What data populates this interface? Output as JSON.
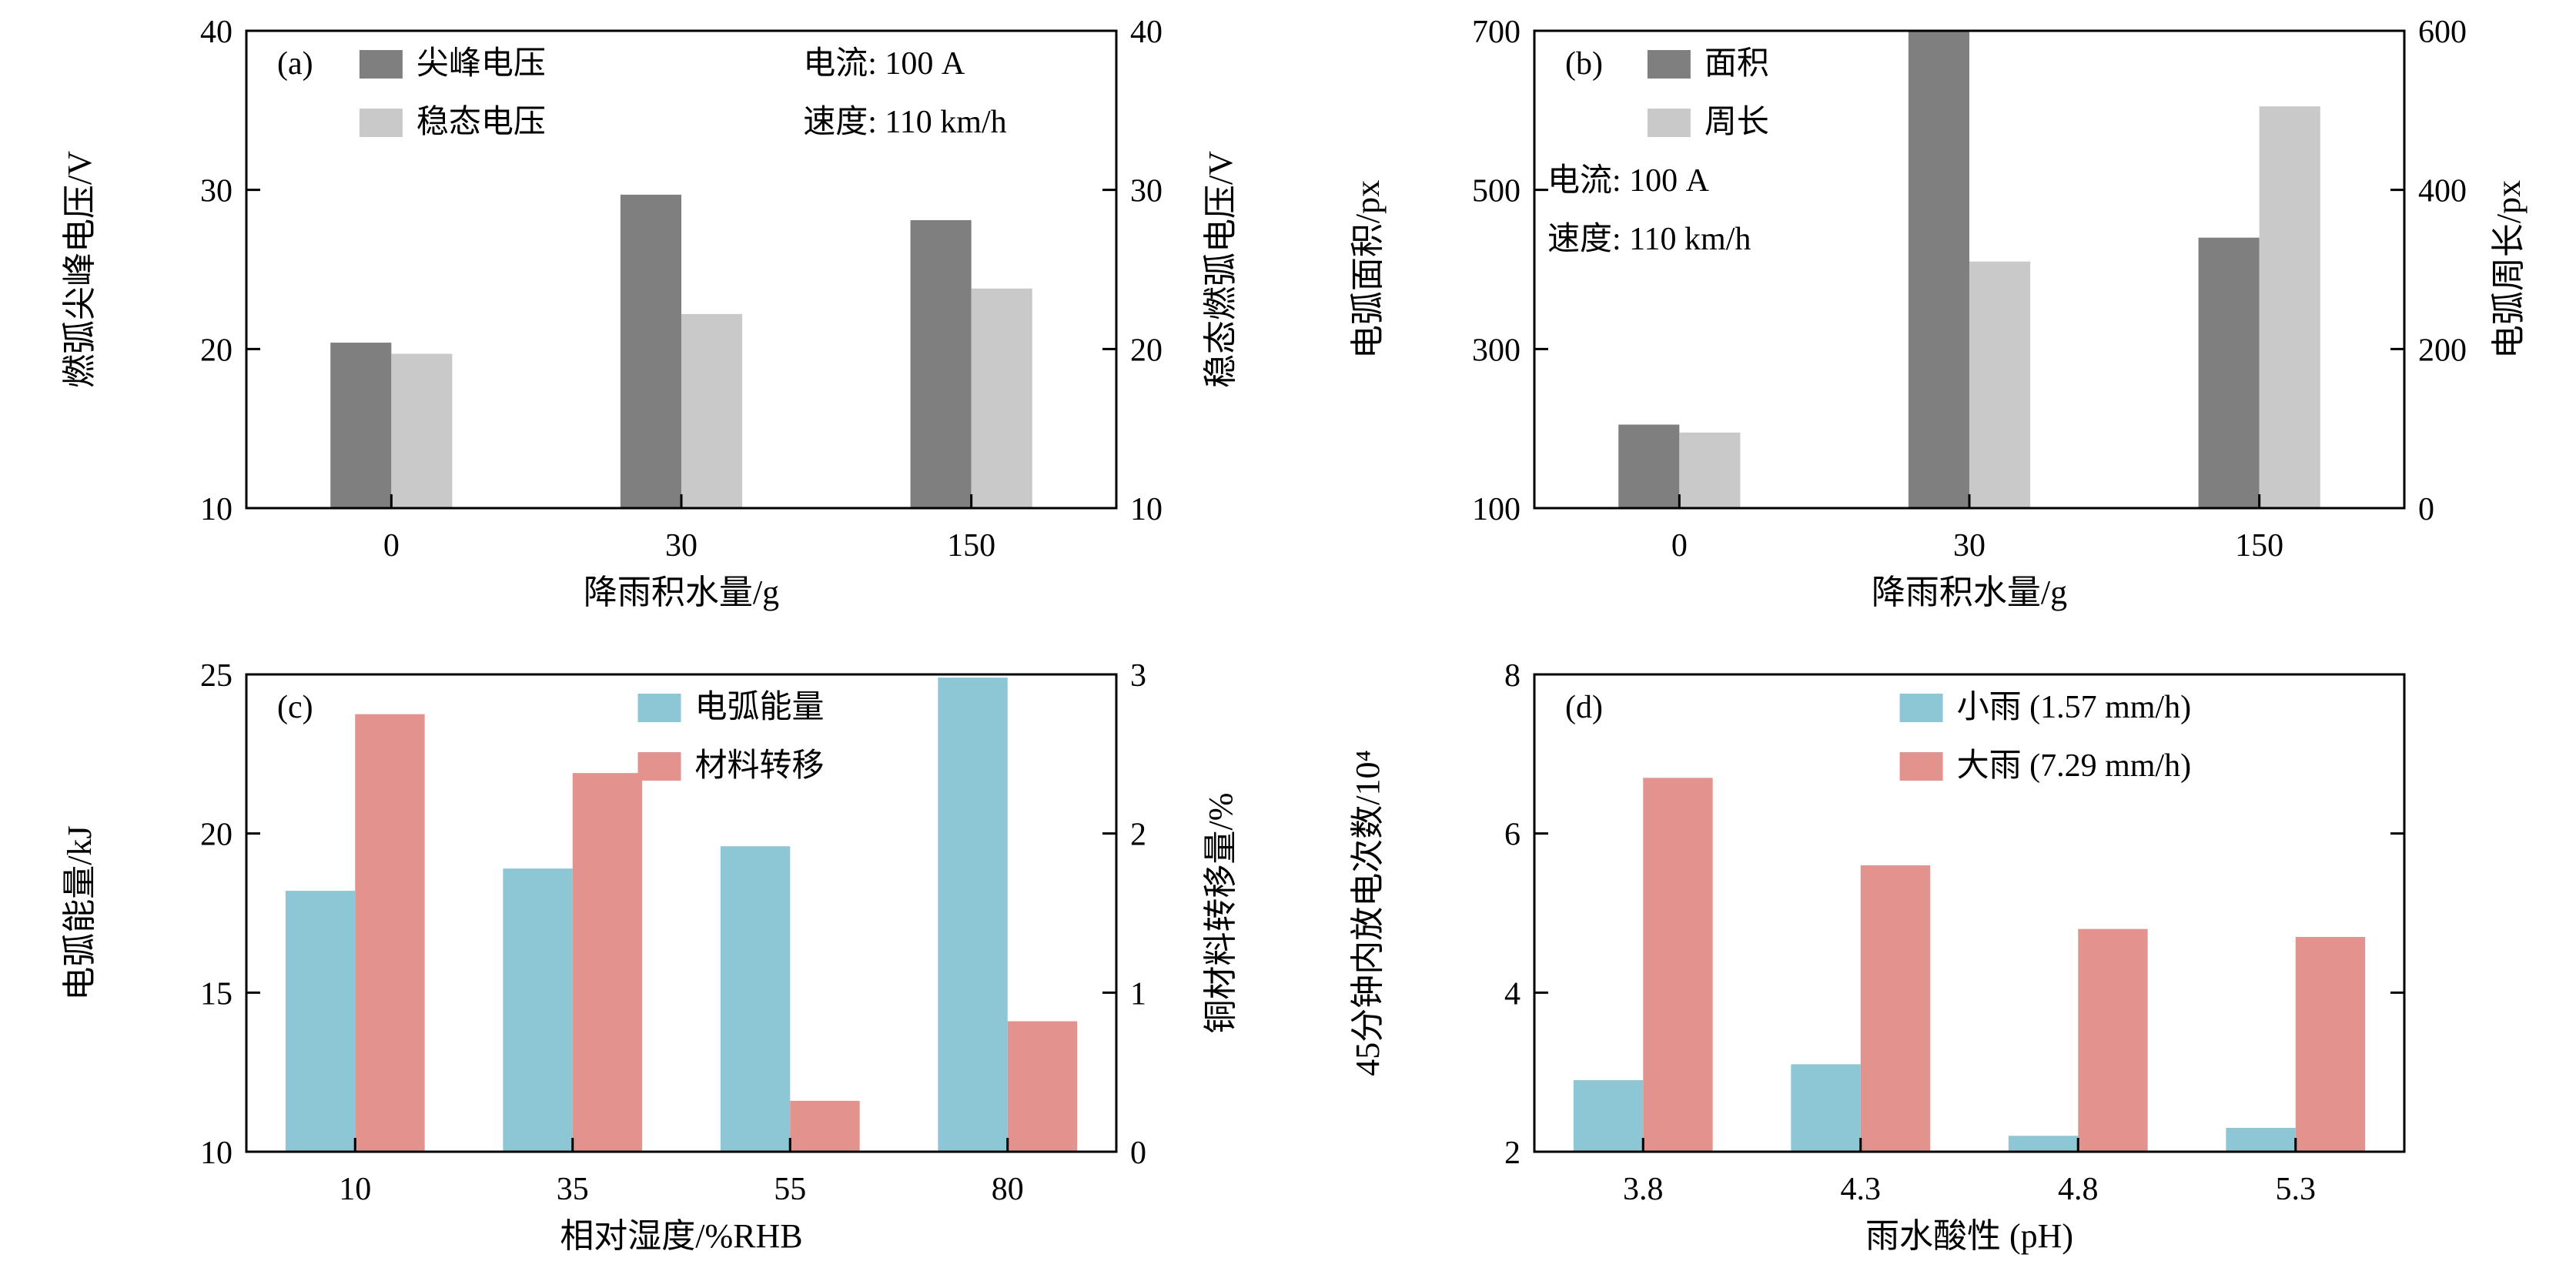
{
  "figure": {
    "background": "#ffffff",
    "axis_color": "#000000"
  },
  "chart_data": [
    {
      "type": "bar",
      "panel_label": "(a)",
      "categories": [
        "0",
        "30",
        "150"
      ],
      "series": [
        {
          "name": "尖峰电压",
          "color": "#7f7f7f",
          "axis": "left",
          "values": [
            20.4,
            29.7,
            28.1
          ]
        },
        {
          "name": "稳态电压",
          "color": "#c9c9c9",
          "axis": "left",
          "values": [
            19.7,
            22.2,
            23.8
          ]
        }
      ],
      "xlabel": "降雨积水量/g",
      "left_axis": {
        "label": "燃弧尖峰电压/V",
        "min": 10,
        "max": 40,
        "ticks": [
          10,
          20,
          30,
          40
        ]
      },
      "right_axis": {
        "label": "稳态燃弧电压/V",
        "min": 10,
        "max": 40,
        "ticks": [
          10,
          20,
          30,
          40
        ],
        "show_labels": true
      },
      "legend": {
        "x_frac": 0.13,
        "row": 0
      },
      "annotation": {
        "lines": [
          "电流: 100 A",
          "速度: 110 km/h"
        ],
        "x_frac": 0.64,
        "row": 0
      },
      "bar_frac": 0.21,
      "grid": false,
      "legend_position": "top-left-inside"
    },
    {
      "type": "bar",
      "panel_label": "(b)",
      "categories": [
        "0",
        "30",
        "150"
      ],
      "series": [
        {
          "name": "面积",
          "color": "#7f7f7f",
          "axis": "left",
          "values": [
            205,
            700,
            440
          ]
        },
        {
          "name": "周长",
          "color": "#c9c9c9",
          "axis": "right",
          "values": [
            95,
            310,
            505
          ]
        }
      ],
      "xlabel": "降雨积水量/g",
      "left_axis": {
        "label": "电弧面积/px",
        "min": 100,
        "max": 700,
        "ticks": [
          100,
          300,
          500,
          700
        ]
      },
      "right_axis": {
        "label": "电弧周长/px",
        "min": 0,
        "max": 600,
        "ticks": [
          0,
          200,
          400,
          600
        ],
        "show_labels": true
      },
      "legend": {
        "x_frac": 0.13,
        "row": 0
      },
      "annotation": {
        "lines": [
          "电流: 100 A",
          "速度: 110 km/h"
        ],
        "x_frac": 0.015,
        "row": 2
      },
      "bar_frac": 0.21,
      "grid": false,
      "legend_position": "top-left-inside"
    },
    {
      "type": "bar",
      "panel_label": "(c)",
      "categories": [
        "10",
        "35",
        "55",
        "80"
      ],
      "series": [
        {
          "name": "电弧能量",
          "color": "#8dc6d4",
          "axis": "left",
          "values": [
            18.2,
            18.9,
            19.6,
            24.9
          ]
        },
        {
          "name": "材料转移",
          "color": "#e3938d",
          "axis": "right",
          "values": [
            2.75,
            2.38,
            0.32,
            0.82
          ]
        }
      ],
      "xlabel": "相对湿度/%RHB",
      "left_axis": {
        "label": "电弧能量/kJ",
        "min": 10,
        "max": 25,
        "ticks": [
          10,
          15,
          20,
          25
        ]
      },
      "right_axis": {
        "label": "铜材料转移量/%",
        "min": 0,
        "max": 3,
        "ticks": [
          0,
          1,
          2,
          3
        ],
        "show_labels": true
      },
      "legend": {
        "x_frac": 0.45,
        "row": 0
      },
      "annotation": null,
      "bar_frac": 0.32,
      "grid": false,
      "legend_position": "top-center-inside"
    },
    {
      "type": "bar",
      "panel_label": "(d)",
      "categories": [
        "3.8",
        "4.3",
        "4.8",
        "5.3"
      ],
      "series": [
        {
          "name": "小雨 (1.57 mm/h)",
          "color": "#8dc6d4",
          "axis": "left",
          "values": [
            2.9,
            3.1,
            2.2,
            2.3
          ]
        },
        {
          "name": "大雨 (7.29 mm/h)",
          "color": "#e3938d",
          "axis": "left",
          "values": [
            6.7,
            5.6,
            4.8,
            4.7
          ]
        }
      ],
      "xlabel": "雨水酸性 (pH)",
      "left_axis": {
        "label": "45分钟内放电次数/10⁴",
        "min": 2,
        "max": 8,
        "ticks": [
          2,
          4,
          6,
          8
        ]
      },
      "right_axis": {
        "label": "",
        "min": 2,
        "max": 8,
        "ticks": [
          2,
          4,
          6,
          8
        ],
        "show_labels": false
      },
      "legend": {
        "x_frac": 0.42,
        "row": 0
      },
      "annotation": null,
      "bar_frac": 0.32,
      "grid": false,
      "legend_position": "top-right-inside"
    }
  ]
}
